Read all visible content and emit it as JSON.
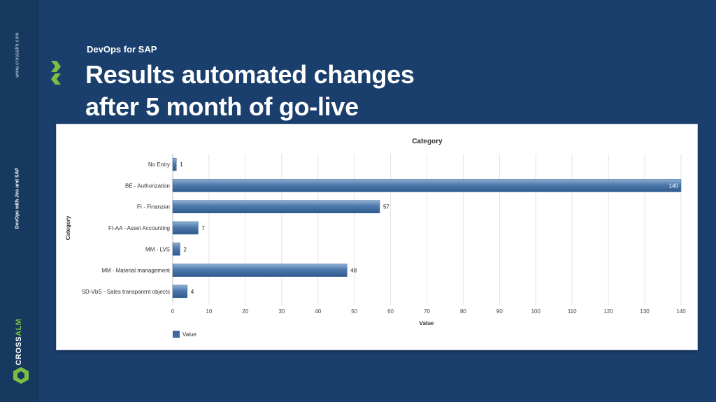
{
  "slide": {
    "subtitle": "DevOps for SAP",
    "title_line1": "Results automated changes",
    "title_line2": "after 5 month of go-live",
    "side_url": "www.crossalm.com",
    "side_topic": "DevOps with Jira and SAP",
    "logo_part1": "CROSS",
    "logo_part2": "ALM"
  },
  "colors": {
    "background": "#1b3f6c",
    "bar": "#3e6a9e",
    "brand_green": "#7ac143"
  },
  "chart_data": {
    "type": "bar",
    "orientation": "horizontal",
    "title": "Category",
    "xlabel": "Value",
    "ylabel": "Category",
    "categories": [
      "No Entry",
      "BE - Authorization",
      "FI - Finanzen",
      "FI-AA - Asset Accounting",
      "MM - LVS",
      "MM - Material management",
      "SD-VbS - Sales transparent objects"
    ],
    "series": [
      {
        "name": "Value",
        "values": [
          1,
          140,
          57,
          7,
          2,
          48,
          4
        ]
      }
    ],
    "xlim": [
      0,
      140
    ],
    "xticks": [
      0,
      10,
      20,
      30,
      40,
      50,
      60,
      70,
      80,
      90,
      100,
      110,
      120,
      130,
      140
    ],
    "grid": true,
    "legend": "bottom-left"
  }
}
